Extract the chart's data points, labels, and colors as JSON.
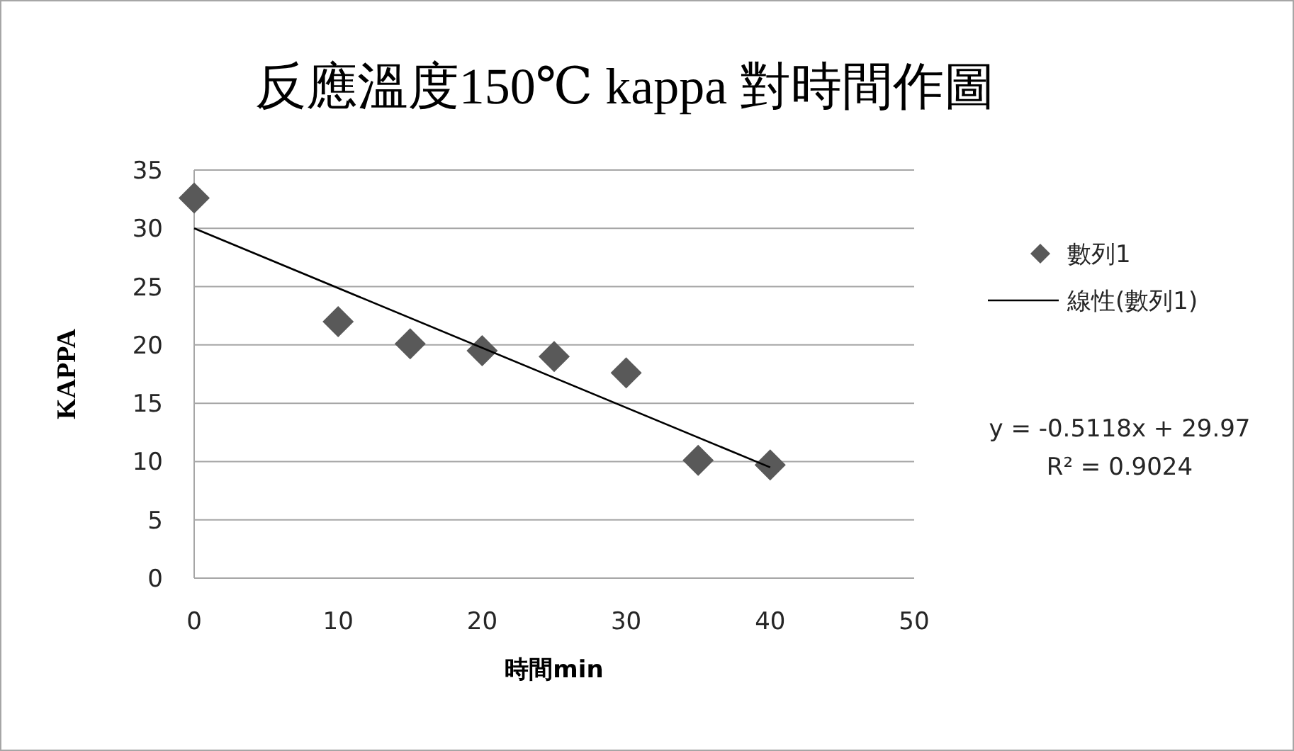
{
  "chart_data": {
    "type": "scatter",
    "title": "反應溫度150℃ kappa 對時間作圖",
    "xlabel": "時間min",
    "ylabel": "KAPPA",
    "x": [
      0,
      10,
      15,
      20,
      25,
      30,
      35,
      40
    ],
    "series": [
      {
        "name": "數列1",
        "color": "#595959",
        "marker": "diamond",
        "values": [
          32.6,
          22.0,
          20.1,
          19.5,
          19.0,
          17.6,
          10.1,
          9.7
        ]
      },
      {
        "name": "線性(數列1)",
        "type": "line",
        "color": "#000000",
        "marker": "none",
        "x": [
          0,
          40
        ],
        "values": [
          30.0,
          9.5
        ]
      }
    ],
    "xlim": [
      0,
      50
    ],
    "xticks": [
      0,
      10,
      20,
      30,
      40,
      50
    ],
    "ylim": [
      0,
      35
    ],
    "yticks": [
      0,
      5,
      10,
      15,
      20,
      25,
      30,
      35
    ],
    "grid": "y",
    "legend": "right",
    "annotations": [
      "y = -0.5118x + 29.97",
      "R² = 0.9024"
    ]
  }
}
